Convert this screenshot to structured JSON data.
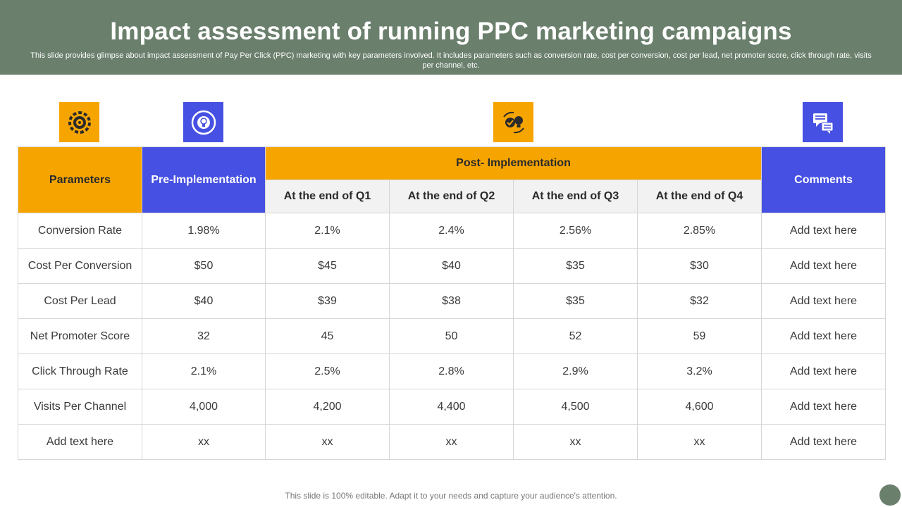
{
  "header": {
    "title": "Impact assessment of running PPC marketing campaigns",
    "subtitle": "This slide provides glimpse about impact assessment of Pay Per Click (PPC) marketing with key parameters involved. It includes parameters such as conversion rate, cost per conversion, cost per lead, net promoter score, click through rate, visits per channel, etc."
  },
  "icons": [
    "gear-target-icon",
    "lightbulb-cycle-icon",
    "idea-checklist-icon",
    "chat-comments-icon"
  ],
  "colors": {
    "header_bg": "#6a7f6c",
    "orange": "#f6a500",
    "blue": "#4650e2",
    "subheader_bg": "#f2f2f2"
  },
  "table": {
    "headers": {
      "parameters": "Parameters",
      "pre": "Pre-Implementation",
      "post": "Post- Implementation",
      "comments": "Comments",
      "quarters": [
        "At the end of Q1",
        "At the end of Q2",
        "At the end of Q3",
        "At the end of Q4"
      ]
    },
    "rows": [
      {
        "param": "Conversion Rate",
        "pre": "1.98%",
        "q": [
          "2.1%",
          "2.4%",
          "2.56%",
          "2.85%"
        ],
        "comment": "Add text here"
      },
      {
        "param": "Cost Per Conversion",
        "pre": "$50",
        "q": [
          "$45",
          "$40",
          "$35",
          "$30"
        ],
        "comment": "Add text here"
      },
      {
        "param": "Cost Per Lead",
        "pre": "$40",
        "q": [
          "$39",
          "$38",
          "$35",
          "$32"
        ],
        "comment": "Add text here"
      },
      {
        "param": "Net Promoter Score",
        "pre": "32",
        "q": [
          "45",
          "50",
          "52",
          "59"
        ],
        "comment": "Add text here"
      },
      {
        "param": "Click Through  Rate",
        "pre": "2.1%",
        "q": [
          "2.5%",
          "2.8%",
          "2.9%",
          "3.2%"
        ],
        "comment": "Add text here"
      },
      {
        "param": "Visits Per Channel",
        "pre": "4,000",
        "q": [
          "4,200",
          "4,400",
          "4,500",
          "4,600"
        ],
        "comment": "Add text here"
      },
      {
        "param": "Add text here",
        "pre": "xx",
        "q": [
          "xx",
          "xx",
          "xx",
          "xx"
        ],
        "comment": "Add text here"
      }
    ]
  },
  "footer": "This slide is 100% editable. Adapt it to your needs and capture your audience's attention."
}
